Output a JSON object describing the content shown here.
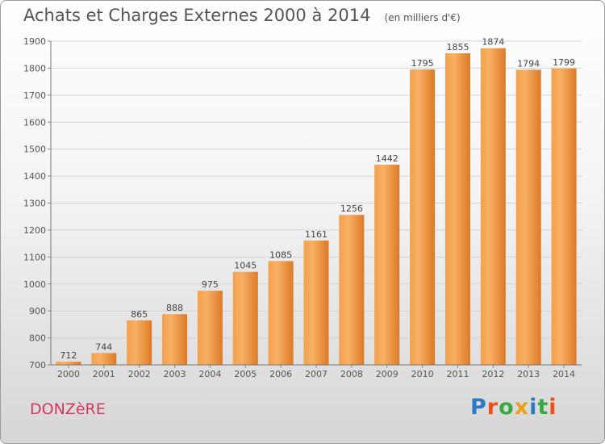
{
  "title": "Achats et Charges Externes 2000 à 2014",
  "subtitle": "(en milliers d'€)",
  "location": "DONZèRE",
  "logo": {
    "text": "Proxiti",
    "colors": [
      "#2a7ac8",
      "#e8501e",
      "#3aa845",
      "#e8a21e",
      "#2a7ac8",
      "#3aa845",
      "#e8501e"
    ]
  },
  "colors": {
    "bar_light": "#f7a854",
    "bar_dark": "#d9731f",
    "grid": "#d3d3d3",
    "text": "#555555"
  },
  "chart_data": {
    "type": "bar",
    "categories": [
      "2000",
      "2001",
      "2002",
      "2003",
      "2004",
      "2005",
      "2006",
      "2007",
      "2008",
      "2009",
      "2010",
      "2011",
      "2012",
      "2013",
      "2014"
    ],
    "values": [
      712,
      744,
      865,
      888,
      975,
      1045,
      1085,
      1161,
      1256,
      1442,
      1795,
      1855,
      1874,
      1794,
      1799
    ],
    "ylim": [
      700,
      1900
    ],
    "yticks": [
      700,
      800,
      900,
      1000,
      1100,
      1200,
      1300,
      1400,
      1500,
      1600,
      1700,
      1800,
      1900
    ],
    "grid": true,
    "xlabel": "",
    "ylabel": ""
  }
}
